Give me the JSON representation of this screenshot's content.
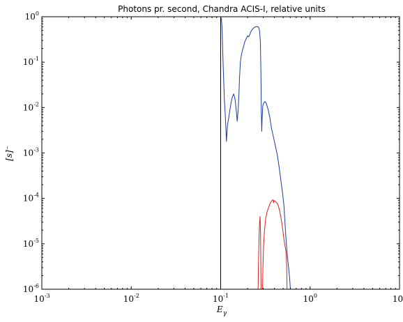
{
  "chart_data": {
    "type": "line",
    "title": "Photons pr. second, Chandra ACIS-I, relative units",
    "xlabel": "E",
    "xlabel_sub": "γ",
    "ylabel": "[s]⁻",
    "xscale": "log",
    "yscale": "log",
    "xlim": [
      0.001,
      10
    ],
    "ylim": [
      1e-06,
      1
    ],
    "grid": false,
    "x_ticks": [
      {
        "base": "10",
        "exp": "-3",
        "value": 0.001
      },
      {
        "base": "10",
        "exp": "-2",
        "value": 0.01
      },
      {
        "base": "10",
        "exp": "-1",
        "value": 0.1
      },
      {
        "base": "10",
        "exp": "0",
        "value": 1
      },
      {
        "base": "10",
        "exp": "1",
        "value": 10
      }
    ],
    "y_ticks": [
      {
        "base": "10",
        "exp": "-6",
        "value": 1e-06
      },
      {
        "base": "10",
        "exp": "-5",
        "value": 1e-05
      },
      {
        "base": "10",
        "exp": "-4",
        "value": 0.0001
      },
      {
        "base": "10",
        "exp": "-3",
        "value": 0.001
      },
      {
        "base": "10",
        "exp": "-2",
        "value": 0.01
      },
      {
        "base": "10",
        "exp": "-1",
        "value": 0.1
      },
      {
        "base": "10",
        "exp": "0",
        "value": 1
      }
    ],
    "vertical_lines": [
      {
        "x": 0.1,
        "color": "#000000"
      }
    ],
    "series": [
      {
        "color": "#1a3a9c",
        "points": [
          [
            0.1,
            1.0
          ],
          [
            0.102,
            0.9
          ],
          [
            0.104,
            0.5
          ],
          [
            0.106,
            0.12
          ],
          [
            0.108,
            0.04
          ],
          [
            0.11,
            0.015
          ],
          [
            0.113,
            0.006
          ],
          [
            0.116,
            0.0018
          ],
          [
            0.119,
            0.004
          ],
          [
            0.123,
            0.006
          ],
          [
            0.127,
            0.009
          ],
          [
            0.131,
            0.013
          ],
          [
            0.135,
            0.017
          ],
          [
            0.14,
            0.02
          ],
          [
            0.145,
            0.015
          ],
          [
            0.15,
            0.008
          ],
          [
            0.153,
            0.005
          ],
          [
            0.157,
            0.009
          ],
          [
            0.16,
            0.02
          ],
          [
            0.163,
            0.05
          ],
          [
            0.166,
            0.1
          ],
          [
            0.17,
            0.14
          ],
          [
            0.175,
            0.18
          ],
          [
            0.18,
            0.22
          ],
          [
            0.186,
            0.28
          ],
          [
            0.193,
            0.33
          ],
          [
            0.2,
            0.38
          ],
          [
            0.206,
            0.36
          ],
          [
            0.211,
            0.4
          ],
          [
            0.218,
            0.47
          ],
          [
            0.226,
            0.53
          ],
          [
            0.235,
            0.57
          ],
          [
            0.245,
            0.6
          ],
          [
            0.255,
            0.61
          ],
          [
            0.265,
            0.59
          ],
          [
            0.272,
            0.5
          ],
          [
            0.278,
            0.28
          ],
          [
            0.282,
            0.06
          ],
          [
            0.285,
            0.008
          ],
          [
            0.288,
            0.003
          ],
          [
            0.291,
            0.006
          ],
          [
            0.296,
            0.011
          ],
          [
            0.305,
            0.013
          ],
          [
            0.315,
            0.0135
          ],
          [
            0.325,
            0.012
          ],
          [
            0.34,
            0.009
          ],
          [
            0.355,
            0.006
          ],
          [
            0.37,
            0.0035
          ],
          [
            0.39,
            0.0022
          ],
          [
            0.41,
            0.0014
          ],
          [
            0.43,
            0.0009
          ],
          [
            0.45,
            0.0005
          ],
          [
            0.47,
            0.00026
          ],
          [
            0.49,
            0.00014
          ],
          [
            0.51,
            7e-05
          ],
          [
            0.53,
            2e-05
          ],
          [
            0.55,
            7e-06
          ],
          [
            0.57,
            3.5e-06
          ],
          [
            0.59,
            1.8e-06
          ],
          [
            0.6,
            1.1e-06
          ],
          [
            0.605,
            1e-06
          ]
        ]
      },
      {
        "color": "#d62020",
        "points": [
          [
            0.262,
            1e-06
          ],
          [
            0.265,
            4e-06
          ],
          [
            0.268,
            1.2e-05
          ],
          [
            0.272,
            2.8e-05
          ],
          [
            0.276,
            4e-05
          ],
          [
            0.279,
            1.8e-05
          ],
          [
            0.281,
            4e-06
          ],
          [
            0.283,
            1e-06
          ],
          [
            0.294,
            1e-06
          ],
          [
            0.297,
            3e-06
          ],
          [
            0.301,
            8e-06
          ],
          [
            0.308,
            1.8e-05
          ],
          [
            0.318,
            3.5e-05
          ],
          [
            0.33,
            5e-05
          ],
          [
            0.345,
            6.5e-05
          ],
          [
            0.36,
            8e-05
          ],
          [
            0.375,
            9e-05
          ],
          [
            0.385,
            9.3e-05
          ],
          [
            0.39,
            8e-05
          ],
          [
            0.395,
            9e-05
          ],
          [
            0.41,
            8.5e-05
          ],
          [
            0.425,
            8e-05
          ],
          [
            0.44,
            7e-05
          ],
          [
            0.455,
            5.5e-05
          ],
          [
            0.47,
            4e-05
          ],
          [
            0.485,
            2.7e-05
          ],
          [
            0.5,
            1.7e-05
          ],
          [
            0.515,
            1.1e-05
          ],
          [
            0.53,
            8e-06
          ],
          [
            0.54,
            6e-06
          ],
          [
            0.548,
            3e-06
          ],
          [
            0.552,
            1e-06
          ]
        ]
      }
    ]
  }
}
